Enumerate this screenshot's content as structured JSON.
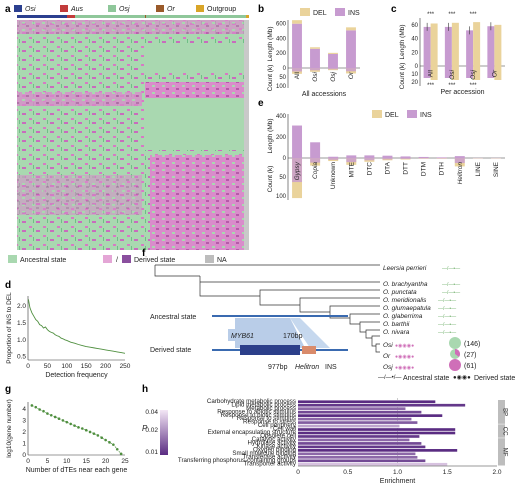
{
  "colors": {
    "osi": "#2b3f8f",
    "aus": "#c23b3b",
    "osj": "#8fc79a",
    "or": "#9a5a2a",
    "outgroup": "#d9a528",
    "del": "#ead39b",
    "ins": "#c79bd0",
    "ancestral": "#a9d8b0",
    "derived": "#cf6fb8",
    "na": "#bdbdbd",
    "bar_purple": "#6a3f8f",
    "line_green": "#4f8f3f"
  },
  "panel_labels": {
    "a": "a",
    "b": "b",
    "c": "c",
    "d": "d",
    "e": "e",
    "f": "f",
    "g": "g",
    "h": "h"
  },
  "panel_a": {
    "legend": [
      {
        "key": "osi",
        "label": "Osi"
      },
      {
        "key": "aus",
        "label": "Aus"
      },
      {
        "key": "osj",
        "label": "Osj"
      },
      {
        "key": "or",
        "label": "Or"
      },
      {
        "key": "outgroup",
        "label": "Outgroup"
      }
    ],
    "state_legend": {
      "ancestral": "Ancestral state",
      "slash": "/",
      "derived": "Derived state",
      "na": "NA"
    }
  },
  "chart_data": [
    {
      "panel": "b",
      "type": "bar",
      "categories": [
        "All",
        "Osi",
        "Osj",
        "Or"
      ],
      "series": [
        {
          "name": "DEL",
          "values": [
            -32,
            -21,
            -12,
            -30
          ]
        },
        {
          "name": "INS",
          "values": [
            600,
            260,
            190,
            510
          ]
        }
      ],
      "ylabel_top": "Length (Mb)",
      "ylabel_bottom": "Count (k)",
      "ticks_top": [
        "600",
        "400",
        "200",
        "0"
      ],
      "ticks_bottom": [
        "0",
        "50",
        "100"
      ],
      "xlabel": "All accessions",
      "legend": [
        "DEL",
        "INS"
      ]
    },
    {
      "panel": "c",
      "type": "bar",
      "categories": [
        "All",
        "Osi",
        "Osj",
        "Or"
      ],
      "series": [
        {
          "name": "INS",
          "values": [
            57,
            57,
            52,
            58
          ]
        },
        {
          "name": "DEL",
          "values": [
            62,
            63,
            64,
            60
          ]
        }
      ],
      "ylabel_top": "Length (Mb)",
      "ylabel_bottom": "Count (k)",
      "ticks_top": [
        "60",
        "40",
        "20",
        "0"
      ],
      "ticks_bottom": [
        "0",
        "10",
        "20"
      ],
      "significance": [
        "***",
        "***",
        "***",
        ""
      ],
      "xlabel": "Per accession"
    },
    {
      "panel": "e",
      "type": "bar",
      "categories": [
        "Gypsy",
        "Copia",
        "Unknown",
        "MITE",
        "DTC",
        "DTA",
        "DTT",
        "DTM",
        "DTH",
        "Helitron",
        "LINE",
        "SINE"
      ],
      "italic": [
        "Gypsy",
        "Copia",
        "Helitron"
      ],
      "series": [
        {
          "name": "DEL",
          "values": [
            400,
            200,
            15,
            30,
            32,
            30,
            20,
            12,
            8,
            22,
            2,
            1
          ]
        },
        {
          "name": "INS",
          "values": [
            310,
            150,
            12,
            25,
            25,
            22,
            15,
            10,
            6,
            18,
            1,
            1
          ]
        }
      ],
      "count_values": [
        105,
        20,
        8,
        18,
        10,
        6,
        4,
        2,
        2,
        22,
        1,
        1
      ],
      "ylabel_top": "Length (Mb)",
      "ylabel_bottom": "Count (k)",
      "ticks_top": [
        "400",
        "200",
        "0"
      ],
      "ticks_bottom": [
        "0",
        "50",
        "100"
      ],
      "legend": [
        "DEL",
        "INS"
      ]
    },
    {
      "panel": "d",
      "type": "line",
      "xlabel": "Detection frequency",
      "ylabel": "Proportion of INS to DEL",
      "xticks": [
        "0",
        "50",
        "100",
        "150",
        "200",
        "250"
      ],
      "yticks": [
        "0.5",
        "1.0",
        "1.5",
        "2.0"
      ],
      "xlim": [
        0,
        250
      ],
      "ylim": [
        0.4,
        2.3
      ],
      "x": [
        1,
        5,
        10,
        15,
        20,
        25,
        30,
        35,
        40,
        45,
        50,
        55,
        60,
        65,
        70,
        75,
        80,
        85,
        90,
        95,
        100,
        110,
        120,
        130,
        140,
        150,
        160,
        170,
        180,
        190,
        200,
        210,
        220,
        230,
        240,
        250
      ],
      "y": [
        2.2,
        1.95,
        1.8,
        1.7,
        1.6,
        1.55,
        1.45,
        1.42,
        1.35,
        1.38,
        1.3,
        1.25,
        1.22,
        1.2,
        1.15,
        1.12,
        1.1,
        1.05,
        1.03,
        1.0,
        0.98,
        0.93,
        0.9,
        0.86,
        0.83,
        0.8,
        0.78,
        0.76,
        0.74,
        0.72,
        0.7,
        0.68,
        0.66,
        0.64,
        0.62,
        0.6
      ]
    },
    {
      "panel": "g",
      "type": "line",
      "xlabel": "Number of dTEs near each gene",
      "ylabel": "log10(gene number)",
      "xticks": [
        "0",
        "5",
        "10",
        "15",
        "20",
        "25"
      ],
      "yticks": [
        "0",
        "1",
        "2",
        "3",
        "4"
      ],
      "xlim": [
        0,
        25
      ],
      "ylim": [
        0,
        4.6
      ],
      "x": [
        1,
        2,
        3,
        4,
        5,
        6,
        7,
        8,
        9,
        10,
        11,
        12,
        13,
        14,
        15,
        16,
        17,
        18,
        19,
        20,
        21,
        22,
        23,
        24
      ],
      "y": [
        4.3,
        4.15,
        3.95,
        3.8,
        3.6,
        3.45,
        3.3,
        3.15,
        3.0,
        2.85,
        2.7,
        2.55,
        2.4,
        2.3,
        2.15,
        2.0,
        1.85,
        1.7,
        1.5,
        1.3,
        1.1,
        0.9,
        0.5,
        0.1
      ]
    },
    {
      "panel": "h",
      "type": "bar",
      "orientation": "horizontal",
      "xlabel": "Enrichment",
      "xticks": [
        "0",
        "0.5",
        "1.0",
        "1.5",
        "2.0"
      ],
      "xlim": [
        0,
        2.0
      ],
      "colorbar_label": "P",
      "colorbar_ticks": [
        "0.04",
        "0.02",
        "0.01"
      ],
      "categories": [
        "Carbohydrate metabolic process",
        "Lipid metabolic process",
        "Metabolic process",
        "Response to abiotic stimulus",
        "Response to biotic stimulus",
        "Response to stimulus",
        "Response to stress",
        "Cell periphery",
        "Cell wall",
        "External encapsulating structure",
        "Obsolete cell",
        "Catalytic activity",
        "Hydrolase activity",
        "Kinase activity",
        "Oxygen binding",
        "Small molecule binding",
        "Transferase activity",
        "Transferring phosphorus-containing groups",
        "Transporter activity"
      ],
      "values": [
        1.38,
        1.68,
        1.08,
        1.24,
        1.45,
        1.14,
        1.2,
        1.02,
        1.58,
        1.58,
        1.22,
        1.12,
        1.24,
        1.28,
        1.6,
        1.18,
        1.2,
        1.28,
        1.5
      ],
      "p_values": [
        0.01,
        0.012,
        0.02,
        0.015,
        0.01,
        0.02,
        0.018,
        0.03,
        0.01,
        0.01,
        0.012,
        0.02,
        0.015,
        0.012,
        0.01,
        0.02,
        0.02,
        0.015,
        0.035
      ],
      "groups": [
        {
          "name": "BP",
          "count": 7
        },
        {
          "name": "CC",
          "count": 4
        },
        {
          "name": "MF",
          "count": 8
        }
      ]
    }
  ],
  "panel_f": {
    "species": [
      "Leersia perrieri",
      "O. brachyantha",
      "O. punctata",
      "O. meridionalis",
      "O. glumaepatula",
      "O. glaberrima",
      "O. barthii",
      "O. nivara",
      "Osi",
      "Or",
      "Osj"
    ],
    "counts": [
      "(146)",
      "(27)",
      "(61)"
    ],
    "ancestral_label": "Ancestral state",
    "derived_label": "Derived state",
    "gene": "MYB61",
    "bp170": "170bp",
    "ins_label": "977bp",
    "ins_label_te": "Helitron",
    "ins_label_suffix": "INS",
    "legend_ancestral": "Ancestral state",
    "legend_derived": "Derived state"
  }
}
